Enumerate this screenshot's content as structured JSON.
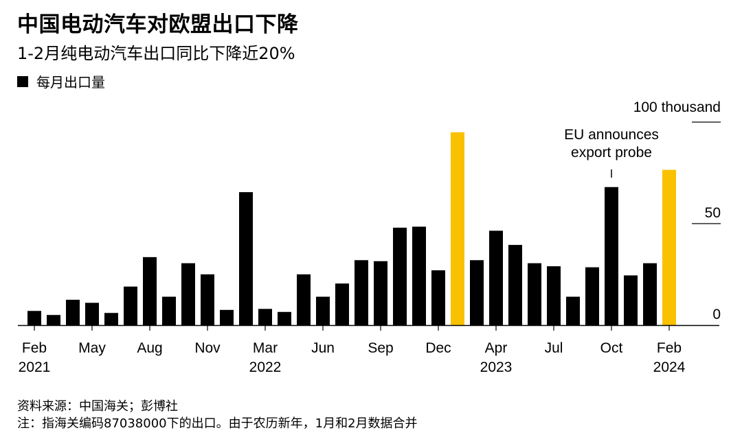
{
  "title": "中国电动汽车对欧盟出口下降",
  "subtitle": "1-2月纯电动汽车出口同比下降近20%",
  "legend_label": "每月出口量",
  "source": "资料来源：中国海关；彭博社",
  "note": "注：指海关编码87038000下的出口。由于农历新年，1月和2月数据合并",
  "annotation": [
    "EU announces",
    "export probe"
  ],
  "colors": {
    "bar": "#000000",
    "highlight": "#f9c100",
    "axis": "#000000"
  },
  "chart_data": {
    "type": "bar",
    "title": "中国电动汽车对欧盟出口下降",
    "ylabel": "",
    "ylim": [
      0,
      100
    ],
    "y_unit_label": "100 thousand",
    "y_ticks": [
      0,
      50
    ],
    "grid": false,
    "legend": "top-left",
    "categories": [
      "Feb 2021",
      "Mar 2021",
      "Apr 2021",
      "May 2021",
      "Jun 2021",
      "Jul 2021",
      "Aug 2021",
      "Sep 2021",
      "Oct 2021",
      "Nov 2021",
      "Dec 2021",
      "Jan 2022",
      "Mar 2022",
      "Apr 2022",
      "May 2022",
      "Jun 2022",
      "Jul 2022",
      "Aug 2022",
      "Sep 2022",
      "Oct 2022",
      "Nov 2022",
      "Dec 2022",
      "Feb 2023",
      "Mar 2023",
      "Apr 2023",
      "May 2023",
      "Jun 2023",
      "Jul 2023",
      "Aug 2023",
      "Sep 2023",
      "Oct 2023",
      "Nov 2023",
      "Dec 2023",
      "Feb 2024"
    ],
    "values": [
      7,
      5,
      12.5,
      11,
      6,
      19,
      33.5,
      14,
      30.5,
      25,
      7.5,
      65.5,
      8,
      6.5,
      25,
      14,
      20.5,
      32,
      31.5,
      48,
      48.5,
      27,
      95,
      32,
      46.5,
      39.5,
      30.5,
      29,
      14,
      28.5,
      68,
      24.5,
      30.5,
      76.5
    ],
    "highlight_indices": [
      22,
      33
    ],
    "x_tick_labels": [
      {
        "index": 0,
        "month": "Feb",
        "year": "2021"
      },
      {
        "index": 3,
        "month": "May",
        "year": ""
      },
      {
        "index": 6,
        "month": "Aug",
        "year": ""
      },
      {
        "index": 9,
        "month": "Nov",
        "year": ""
      },
      {
        "index": 12,
        "month": "Mar",
        "year": "2022"
      },
      {
        "index": 15,
        "month": "Jun",
        "year": ""
      },
      {
        "index": 18,
        "month": "Sep",
        "year": ""
      },
      {
        "index": 21,
        "month": "Dec",
        "year": ""
      },
      {
        "index": 24,
        "month": "Apr",
        "year": "2023"
      },
      {
        "index": 27,
        "month": "Jul",
        "year": ""
      },
      {
        "index": 30,
        "month": "Oct",
        "year": ""
      },
      {
        "index": 33,
        "month": "Feb",
        "year": "2024"
      }
    ],
    "annotation_index": 30
  }
}
